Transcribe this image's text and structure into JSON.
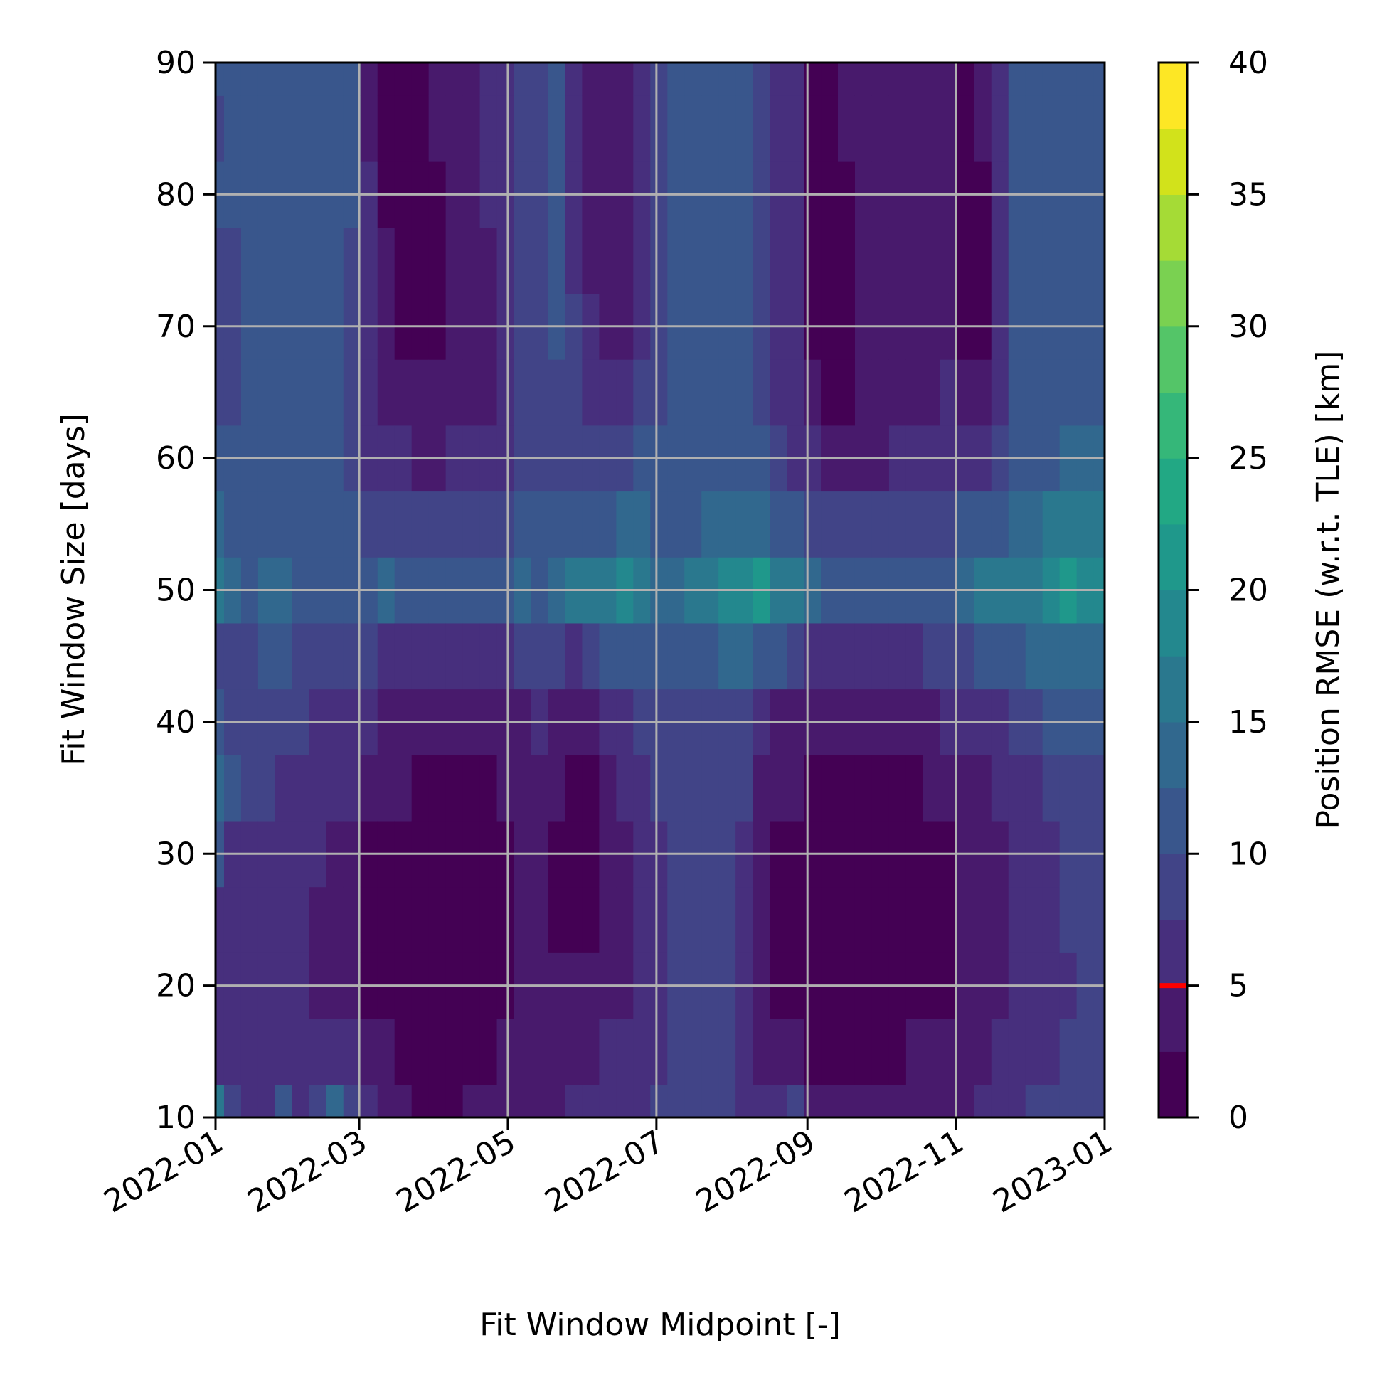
{
  "chart_data": {
    "type": "heatmap",
    "style": "filled-contour",
    "xlabel": "Fit Window Midpoint [-]",
    "ylabel": "Fit Window Size [days]",
    "colorbar_label": "Position RMSE (w.r.t. TLE) [km]",
    "colormap": "viridis",
    "x_ticks": [
      "2022-01",
      "2022-03",
      "2022-05",
      "2022-07",
      "2022-09",
      "2022-11",
      "2023-01"
    ],
    "xlim": [
      "2022-01-01",
      "2023-01-01"
    ],
    "y_ticks": [
      10,
      20,
      30,
      40,
      50,
      60,
      70,
      80,
      90
    ],
    "ylim": [
      10,
      90
    ],
    "colorbar_ticks": [
      0,
      5,
      10,
      15,
      20,
      25,
      30,
      35,
      40
    ],
    "colorbar_range": [
      0,
      40
    ],
    "contour_levels": 16,
    "threshold_marker": {
      "value": 5,
      "color": "#ff0000"
    },
    "grid": true,
    "x_dates": [
      "2022-01-01",
      "2022-01-08",
      "2022-01-15",
      "2022-01-22",
      "2022-01-29",
      "2022-02-05",
      "2022-02-12",
      "2022-02-19",
      "2022-02-26",
      "2022-03-05",
      "2022-03-12",
      "2022-03-19",
      "2022-03-26",
      "2022-04-02",
      "2022-04-09",
      "2022-04-16",
      "2022-04-23",
      "2022-04-30",
      "2022-05-07",
      "2022-05-14",
      "2022-05-21",
      "2022-05-28",
      "2022-06-04",
      "2022-06-11",
      "2022-06-18",
      "2022-06-25",
      "2022-07-02",
      "2022-07-09",
      "2022-07-16",
      "2022-07-23",
      "2022-07-30",
      "2022-08-06",
      "2022-08-13",
      "2022-08-20",
      "2022-08-27",
      "2022-09-03",
      "2022-09-10",
      "2022-09-17",
      "2022-09-24",
      "2022-10-01",
      "2022-10-08",
      "2022-10-15",
      "2022-10-22",
      "2022-10-29",
      "2022-11-05",
      "2022-11-12",
      "2022-11-19",
      "2022-11-26",
      "2022-12-03",
      "2022-12-10",
      "2022-12-17",
      "2022-12-24",
      "2022-12-31"
    ],
    "y_values": [
      10,
      15,
      20,
      25,
      30,
      35,
      40,
      45,
      50,
      55,
      60,
      65,
      70,
      75,
      80,
      85,
      90
    ],
    "z_values_km": [
      [
        16,
        6,
        5,
        6,
        10,
        14,
        10,
        9,
        16,
        13,
        10,
        9,
        8,
        9,
        10,
        9,
        12
      ],
      [
        8,
        5,
        5,
        5,
        7,
        10,
        9,
        9,
        14,
        12,
        10,
        9,
        9,
        9,
        10,
        10,
        10
      ],
      [
        6,
        5,
        5,
        5,
        6,
        8,
        8,
        9,
        12,
        11,
        10,
        10,
        10,
        10,
        10,
        10,
        10
      ],
      [
        7,
        5,
        5,
        5,
        6,
        8,
        8,
        10,
        13,
        11,
        10,
        10,
        10,
        10,
        10,
        10,
        10
      ],
      [
        10,
        5,
        5,
        5,
        6,
        7,
        8,
        10,
        14,
        12,
        11,
        10,
        10,
        10,
        10,
        10,
        10
      ],
      [
        7,
        6,
        5,
        5,
        6,
        7,
        8,
        9,
        12,
        11,
        10,
        10,
        10,
        10,
        10,
        10,
        10
      ],
      [
        9,
        6,
        4,
        4,
        5,
        6,
        7,
        9,
        12,
        11,
        10,
        10,
        10,
        10,
        10,
        10,
        10
      ],
      [
        14,
        7,
        3,
        3,
        4,
        5,
        6,
        8,
        12,
        11,
        10,
        10,
        10,
        10,
        10,
        10,
        10
      ],
      [
        8,
        5,
        3,
        3,
        3,
        5,
        6,
        9,
        12,
        10,
        9,
        9,
        8,
        9,
        10,
        10,
        11
      ],
      [
        6,
        4,
        2,
        2,
        2,
        4,
        5,
        8,
        11,
        9,
        7,
        6,
        5,
        5,
        5,
        4,
        4
      ],
      [
        4,
        3,
        2,
        2,
        2,
        3,
        4,
        7,
        13,
        9,
        6,
        4,
        3,
        3,
        2,
        2,
        2
      ],
      [
        3,
        2,
        2,
        2,
        2,
        3,
        4,
        7,
        11,
        8,
        5,
        3,
        2,
        2,
        2,
        2,
        2
      ],
      [
        2,
        2,
        1,
        1,
        1,
        2,
        3,
        7,
        11,
        8,
        4,
        3,
        2,
        2,
        2,
        2,
        2
      ],
      [
        2,
        2,
        1,
        1,
        1,
        2,
        3,
        6,
        10,
        8,
        4,
        3,
        2,
        2,
        2,
        3,
        3
      ],
      [
        2,
        2,
        1,
        1,
        1,
        2,
        3,
        6,
        10,
        8,
        5,
        3,
        3,
        3,
        3,
        3,
        3
      ],
      [
        3,
        2,
        1,
        1,
        1,
        2,
        3,
        6,
        11,
        8,
        5,
        4,
        3,
        4,
        4,
        4,
        4
      ],
      [
        3,
        2,
        2,
        1,
        1,
        2,
        3,
        6,
        10,
        8,
        6,
        4,
        4,
        4,
        5,
        5,
        5
      ],
      [
        3,
        3,
        2,
        2,
        2,
        3,
        4,
        7,
        11,
        9,
        7,
        6,
        6,
        6,
        6,
        6,
        6
      ],
      [
        4,
        3,
        3,
        3,
        3,
        3,
        4,
        8,
        13,
        10,
        8,
        8,
        8,
        8,
        8,
        8,
        8
      ],
      [
        4,
        4,
        3,
        3,
        3,
        4,
        5,
        8,
        12,
        10,
        9,
        9,
        9,
        9,
        9,
        9,
        9
      ],
      [
        4,
        4,
        3,
        2,
        2,
        3,
        4,
        8,
        13,
        10,
        9,
        9,
        10,
        10,
        10,
        10,
        10
      ],
      [
        5,
        4,
        3,
        2,
        2,
        2,
        3,
        7,
        16,
        11,
        9,
        8,
        8,
        7,
        7,
        7,
        7
      ],
      [
        5,
        4,
        3,
        2,
        2,
        2,
        4,
        9,
        15,
        11,
        8,
        6,
        5,
        4,
        4,
        4,
        4
      ],
      [
        6,
        5,
        4,
        3,
        3,
        3,
        5,
        10,
        17,
        12,
        8,
        5,
        3,
        3,
        3,
        3,
        3
      ],
      [
        6,
        5,
        4,
        4,
        4,
        5,
        7,
        12,
        19,
        13,
        9,
        6,
        4,
        3,
        3,
        3,
        3
      ],
      [
        7,
        6,
        6,
        6,
        6,
        7,
        9,
        12,
        17,
        13,
        10,
        8,
        6,
        5,
        5,
        5,
        5
      ],
      [
        8,
        7,
        7,
        7,
        7,
        8,
        9,
        11,
        14,
        12,
        10,
        9,
        9,
        9,
        9,
        9,
        9
      ],
      [
        8,
        8,
        8,
        8,
        8,
        8,
        9,
        11,
        14,
        12,
        11,
        10,
        10,
        10,
        10,
        10,
        10
      ],
      [
        8,
        8,
        8,
        8,
        8,
        8,
        9,
        11,
        15,
        12,
        11,
        10,
        10,
        10,
        10,
        10,
        10
      ],
      [
        8,
        8,
        8,
        8,
        8,
        8,
        9,
        12,
        17,
        13,
        11,
        10,
        10,
        10,
        10,
        10,
        10
      ],
      [
        8,
        8,
        8,
        8,
        8,
        8,
        9,
        13,
        19,
        14,
        11,
        10,
        10,
        10,
        10,
        10,
        10
      ],
      [
        7,
        6,
        6,
        6,
        7,
        8,
        9,
        13,
        18,
        14,
        11,
        10,
        10,
        10,
        10,
        10,
        10
      ],
      [
        6,
        4,
        3,
        3,
        3,
        4,
        6,
        12,
        22,
        14,
        10,
        9,
        9,
        9,
        9,
        9,
        9
      ],
      [
        5,
        3,
        2,
        2,
        2,
        3,
        4,
        10,
        17,
        12,
        8,
        7,
        7,
        7,
        7,
        7,
        7
      ],
      [
        8,
        4,
        2,
        2,
        2,
        3,
        4,
        9,
        16,
        11,
        7,
        6,
        6,
        6,
        6,
        6,
        6
      ],
      [
        4,
        2,
        1,
        1,
        1,
        2,
        3,
        7,
        13,
        9,
        5,
        3,
        2,
        2,
        2,
        2,
        2
      ],
      [
        3,
        2,
        1,
        1,
        1,
        2,
        3,
        7,
        12,
        8,
        4,
        2,
        2,
        2,
        2,
        2,
        2
      ],
      [
        3,
        2,
        1,
        1,
        1,
        2,
        3,
        7,
        11,
        8,
        4,
        2,
        2,
        2,
        2,
        3,
        3
      ],
      [
        3,
        2,
        1,
        1,
        1,
        2,
        3,
        7,
        12,
        8,
        4,
        3,
        3,
        3,
        3,
        3,
        3
      ],
      [
        3,
        2,
        1,
        1,
        1,
        2,
        3,
        7,
        11,
        8,
        4,
        3,
        3,
        3,
        3,
        3,
        3
      ],
      [
        4,
        2,
        2,
        1,
        1,
        2,
        3,
        7,
        12,
        8,
        5,
        4,
        4,
        4,
        4,
        4,
        4
      ],
      [
        4,
        3,
        2,
        2,
        2,
        2,
        3,
        7,
        11,
        8,
        5,
        4,
        4,
        4,
        4,
        4,
        4
      ],
      [
        4,
        3,
        2,
        2,
        2,
        3,
        4,
        8,
        12,
        9,
        5,
        4,
        4,
        4,
        4,
        4,
        4
      ],
      [
        4,
        3,
        2,
        2,
        2,
        3,
        5,
        8,
        12,
        9,
        6,
        5,
        4,
        4,
        4,
        4,
        4
      ],
      [
        4,
        3,
        3,
        3,
        3,
        4,
        5,
        9,
        14,
        10,
        5,
        3,
        2,
        2,
        2,
        2,
        2
      ],
      [
        5,
        4,
        3,
        3,
        3,
        4,
        6,
        10,
        15,
        11,
        6,
        3,
        2,
        2,
        2,
        3,
        3
      ],
      [
        6,
        5,
        4,
        4,
        4,
        5,
        7,
        11,
        15,
        12,
        8,
        6,
        5,
        5,
        5,
        6,
        6
      ],
      [
        7,
        6,
        5,
        5,
        5,
        6,
        8,
        12,
        16,
        13,
        11,
        10,
        10,
        10,
        11,
        11,
        11
      ],
      [
        8,
        7,
        6,
        6,
        6,
        7,
        9,
        13,
        17,
        14,
        12,
        11,
        11,
        11,
        12,
        12,
        12
      ],
      [
        8,
        7,
        7,
        7,
        7,
        8,
        10,
        13,
        18,
        15,
        12,
        12,
        12,
        12,
        12,
        12,
        12
      ],
      [
        8,
        8,
        7,
        8,
        8,
        9,
        11,
        14,
        20,
        16,
        13,
        12,
        12,
        12,
        12,
        12,
        12
      ],
      [
        9,
        8,
        8,
        8,
        8,
        9,
        11,
        14,
        19,
        16,
        13,
        12,
        12,
        12,
        12,
        12,
        12
      ],
      [
        9,
        8,
        8,
        8,
        8,
        9,
        11,
        14,
        18,
        16,
        13,
        12,
        12,
        12,
        12,
        12,
        12
      ]
    ]
  }
}
